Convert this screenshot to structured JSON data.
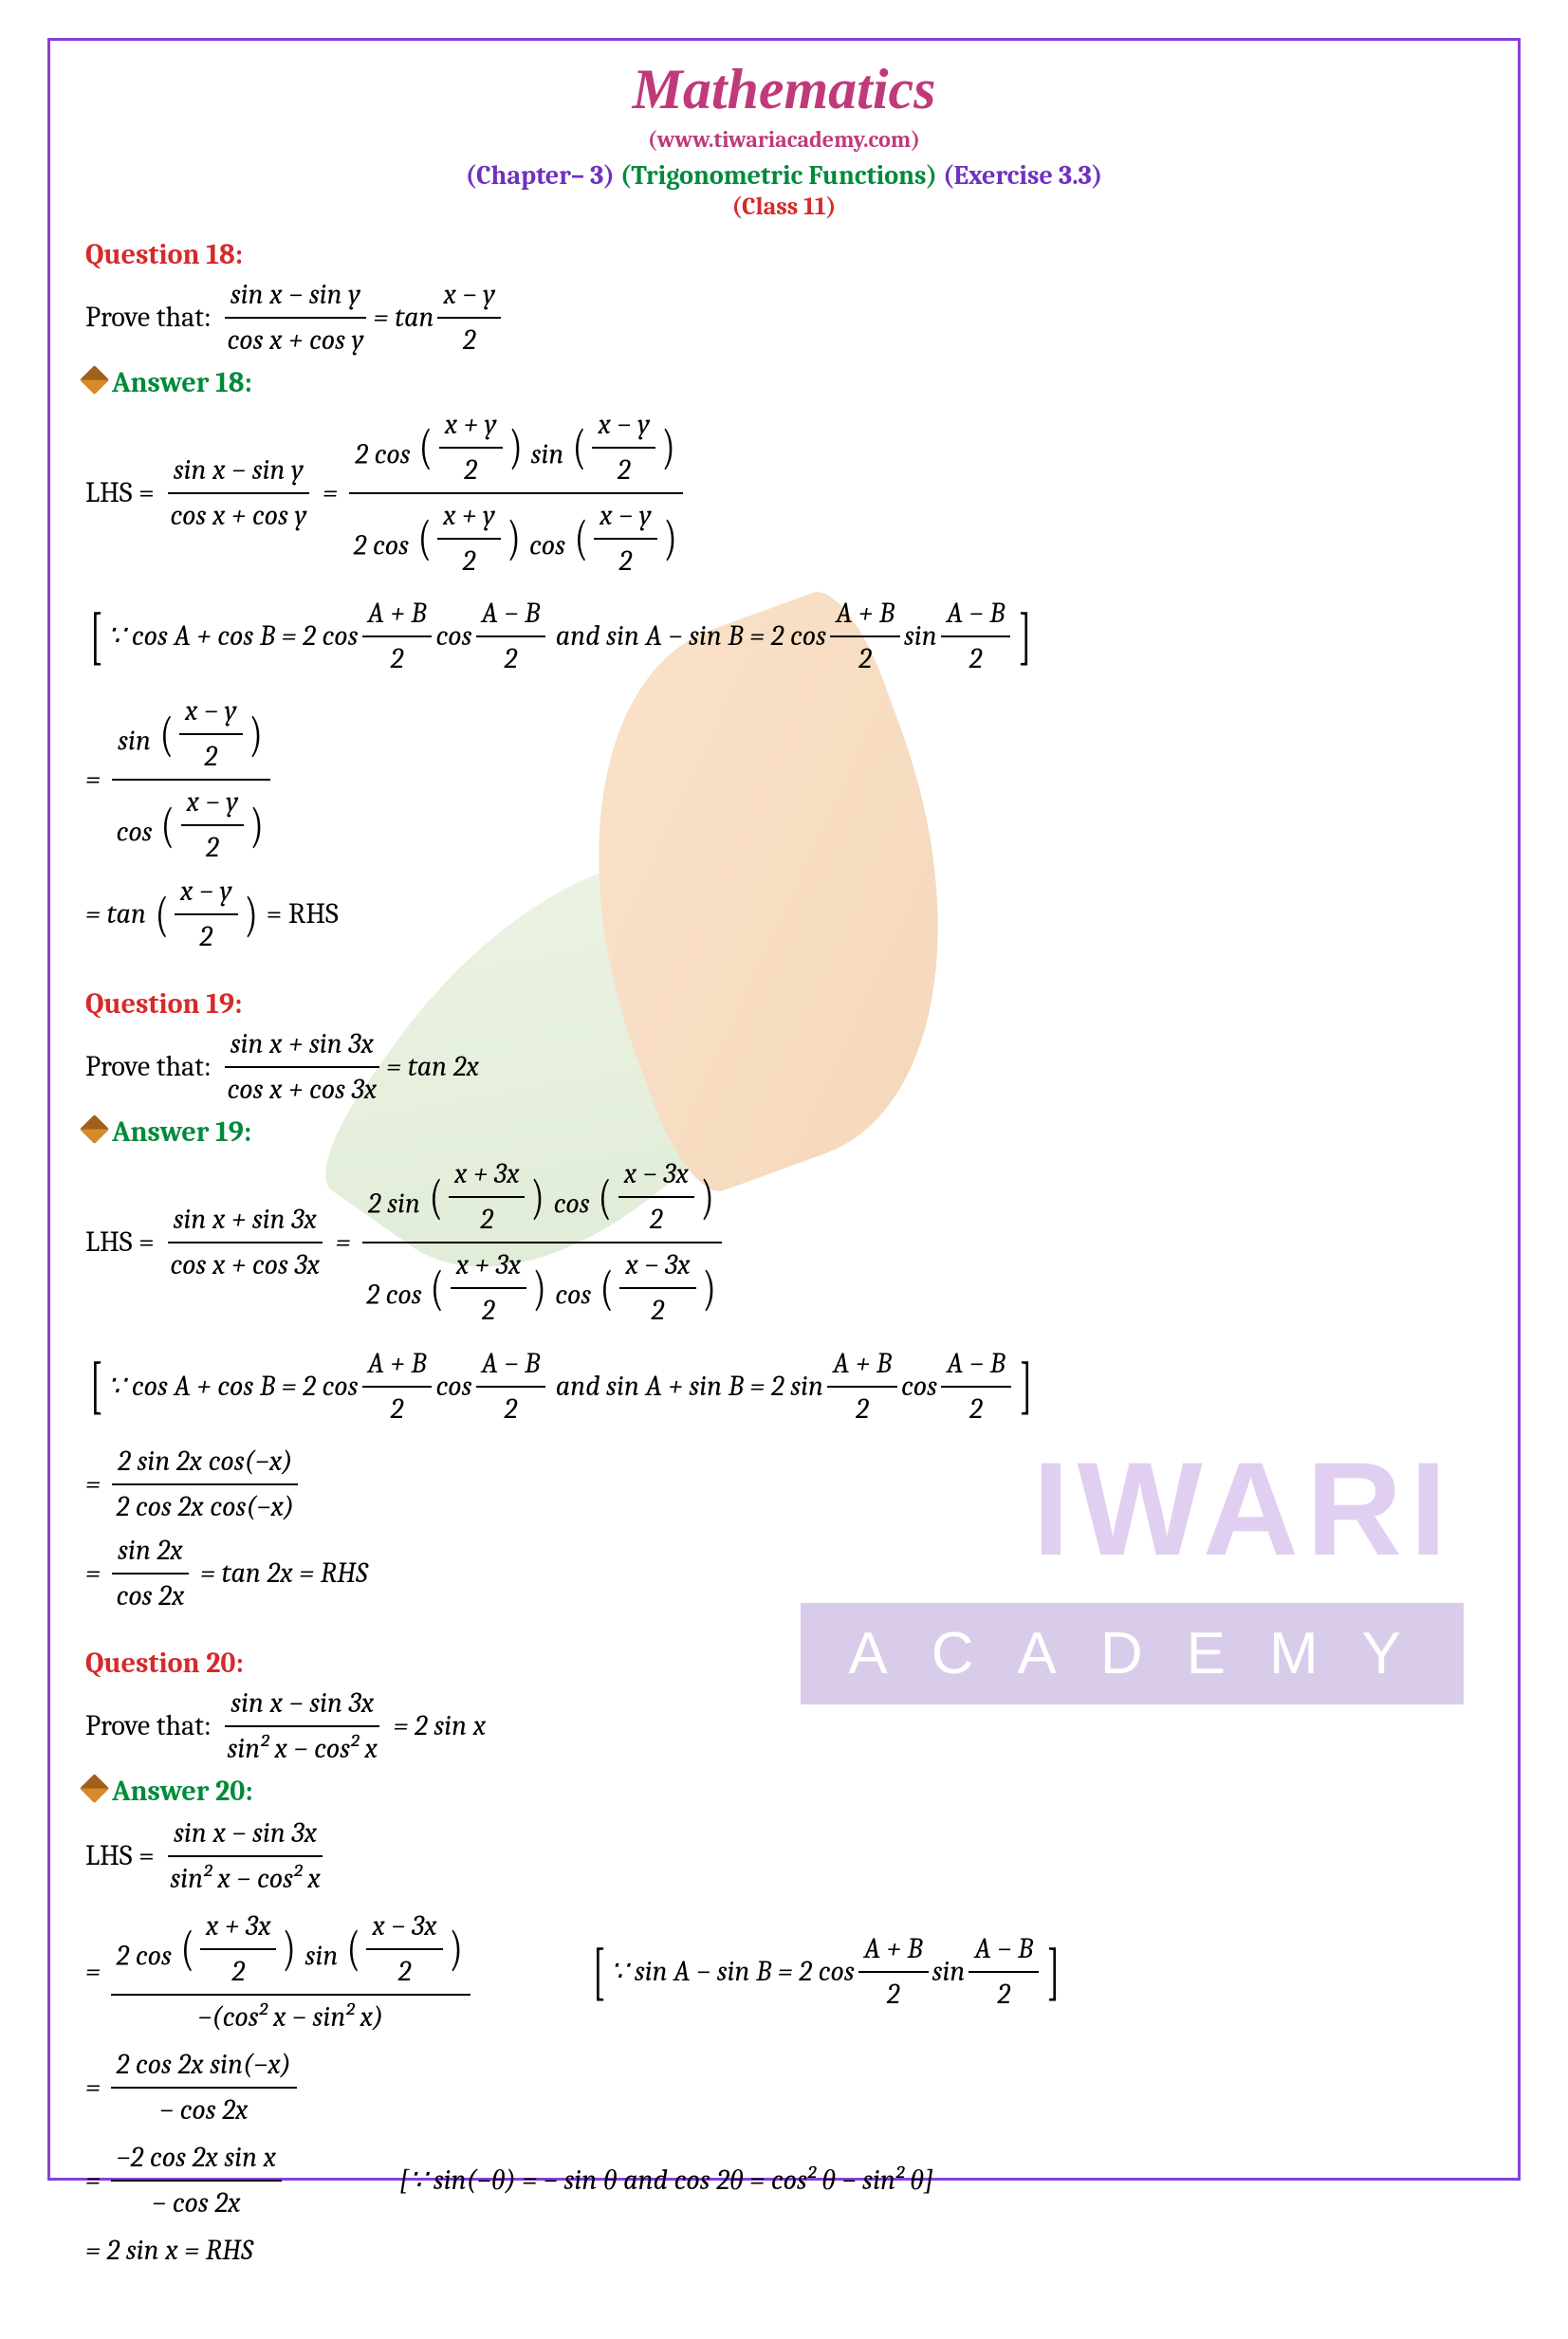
{
  "header": {
    "title": "Mathematics",
    "website": "(www.tiwariacademy.com)",
    "chapter_left": "(Chapter– 3)",
    "chapter_mid": "(Trigonometric Functions)",
    "chapter_right": "(Exercise 3.3)",
    "class_line": "(Class 11)"
  },
  "watermark": {
    "big": "IWARI",
    "sub": "ACADEMY"
  },
  "q18": {
    "label": "Question 18:",
    "prompt": "Prove that:",
    "ans_label": "Answer 18:",
    "lhs_pre": "LHS =",
    "eqref_prefix": "∵ cos A + cos B = 2 cos",
    "eqref_mid": "and  sin A − sin B = 2 cos",
    "rhs_end": "= RHS",
    "frac1_num": "sin x − sin y",
    "frac1_den": "cos x + cos y",
    "tan_pre": "= tan",
    "tan_arg_num": "x − y",
    "tan_arg_den": "2",
    "step2_num": "x + y",
    "step2_den": "2",
    "step2b_num": "x − y",
    "AB_num": "A + B",
    "AB_den": "2",
    "AB2_num": "A − B",
    "sinfrac_pre": "sin",
    "cosfrac_pre": "cos",
    "tan_final": "= tan"
  },
  "q19": {
    "label": "Question 19:",
    "prompt": "Prove that:",
    "ans_label": "Answer 19:",
    "lhs_pre": "LHS =",
    "frac1_num": "sin x + sin 3x",
    "frac1_den": "cos x + cos 3x",
    "eq_tan": "= tan 2x",
    "eqref_prefix": "∵ cos A + cos B = 2 cos",
    "eqref_mid": "and  sin A + sin B = 2 sin",
    "x3x_num": "x + 3x",
    "x3xm_num": "x − 3x",
    "two": "2",
    "step3_num": "2 sin 2x cos(−x)",
    "step3_den": "2 cos 2x cos(−x)",
    "step4_num": "sin 2x",
    "step4_den": "cos 2x",
    "rhs": "= tan 2x = RHS"
  },
  "q20": {
    "label": "Question 20:",
    "prompt": "Prove that:",
    "ans_label": "Answer 20:",
    "frac1_num": "sin x − sin 3x",
    "frac1_den": "sin² x − cos² x",
    "eq_rhs": "= 2 sin x",
    "lhs_pre": "LHS =",
    "note1_pre": "∵ sin A − sin B = 2 cos",
    "note1_mid": "sin",
    "step2_den": "−(cos² x − sin² x)",
    "step3_num": "2 cos 2x sin(−x)",
    "step3_den": "− cos 2x",
    "step4_num": "−2 cos 2x sin x",
    "step4_den": "− cos 2x",
    "note2": "[∵ sin(−θ) = − sin θ  and  cos 2θ = cos² θ − sin² θ]",
    "final": "= 2 sin x = RHS"
  }
}
